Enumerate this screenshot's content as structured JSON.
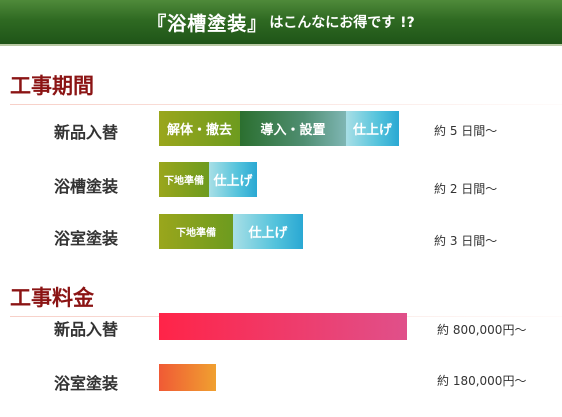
{
  "banner": {
    "title": "『浴槽塗装』",
    "suffix": "はこんなにお得です !?"
  },
  "schedule": {
    "title": "工事期間",
    "rows": [
      {
        "label": "新品入替",
        "segments": [
          {
            "text": "解体・撤去",
            "days": 1
          },
          {
            "text": "導入・設置",
            "days": 2
          },
          {
            "text": "仕上げ",
            "days": 1
          }
        ],
        "duration": "約 5 日間〜"
      },
      {
        "label": "浴槽塗装",
        "segments": [
          {
            "text": "下地準備",
            "days": 0.5
          },
          {
            "text": "仕上げ",
            "days": 0.5
          }
        ],
        "duration": "約 2 日間〜"
      },
      {
        "label": "浴室塗装",
        "segments": [
          {
            "text": "下地準備",
            "days": 0.75
          },
          {
            "text": "仕上げ",
            "days": 0.75
          }
        ],
        "duration": "約 3 日間〜"
      }
    ]
  },
  "cost": {
    "title": "工事料金",
    "rows": [
      {
        "label": "新品入替",
        "amount": 800000,
        "display": "約  800,000円〜",
        "color_from": "#ff2448",
        "color_to": "#e0508a"
      },
      {
        "label": "浴室塗装",
        "amount": 180000,
        "display": "約  180,000円〜",
        "color_from": "#f05a35",
        "color_to": "#f0a030"
      }
    ]
  },
  "chart_data": [
    {
      "type": "bar",
      "title": "工事期間",
      "categories": [
        "新品入替",
        "浴槽塗装",
        "浴室塗装"
      ],
      "series": [
        {
          "name": "解体・撤去",
          "values": [
            1,
            null,
            null
          ]
        },
        {
          "name": "導入・設置",
          "values": [
            2,
            null,
            null
          ]
        },
        {
          "name": "下地準備",
          "values": [
            null,
            0.5,
            0.75
          ]
        },
        {
          "name": "仕上げ",
          "values": [
            1,
            0.5,
            0.75
          ]
        }
      ],
      "labels": [
        "約 5 日間〜",
        "約 2 日間〜",
        "約 3 日間〜"
      ]
    },
    {
      "type": "bar",
      "title": "工事料金",
      "categories": [
        "新品入替",
        "浴室塗装"
      ],
      "values": [
        800000,
        180000
      ],
      "labels": [
        "約  800,000円〜",
        "約  180,000円〜"
      ]
    }
  ]
}
